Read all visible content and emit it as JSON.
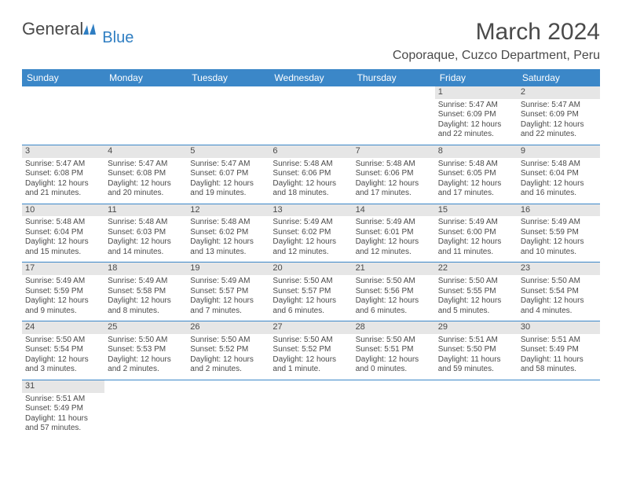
{
  "logo": {
    "text1": "General",
    "text2": "Blue"
  },
  "title": "March 2024",
  "location": "Coporaque, Cuzco Department, Peru",
  "colors": {
    "header_bg": "#3b87c8",
    "header_text": "#ffffff",
    "daynum_bg": "#e6e6e6",
    "text": "#4a4a4a",
    "row_border": "#3b87c8"
  },
  "weekdays": [
    "Sunday",
    "Monday",
    "Tuesday",
    "Wednesday",
    "Thursday",
    "Friday",
    "Saturday"
  ],
  "weeks": [
    [
      null,
      null,
      null,
      null,
      null,
      {
        "n": "1",
        "sr": "Sunrise: 5:47 AM",
        "ss": "Sunset: 6:09 PM",
        "dl1": "Daylight: 12 hours",
        "dl2": "and 22 minutes."
      },
      {
        "n": "2",
        "sr": "Sunrise: 5:47 AM",
        "ss": "Sunset: 6:09 PM",
        "dl1": "Daylight: 12 hours",
        "dl2": "and 22 minutes."
      }
    ],
    [
      {
        "n": "3",
        "sr": "Sunrise: 5:47 AM",
        "ss": "Sunset: 6:08 PM",
        "dl1": "Daylight: 12 hours",
        "dl2": "and 21 minutes."
      },
      {
        "n": "4",
        "sr": "Sunrise: 5:47 AM",
        "ss": "Sunset: 6:08 PM",
        "dl1": "Daylight: 12 hours",
        "dl2": "and 20 minutes."
      },
      {
        "n": "5",
        "sr": "Sunrise: 5:47 AM",
        "ss": "Sunset: 6:07 PM",
        "dl1": "Daylight: 12 hours",
        "dl2": "and 19 minutes."
      },
      {
        "n": "6",
        "sr": "Sunrise: 5:48 AM",
        "ss": "Sunset: 6:06 PM",
        "dl1": "Daylight: 12 hours",
        "dl2": "and 18 minutes."
      },
      {
        "n": "7",
        "sr": "Sunrise: 5:48 AM",
        "ss": "Sunset: 6:06 PM",
        "dl1": "Daylight: 12 hours",
        "dl2": "and 17 minutes."
      },
      {
        "n": "8",
        "sr": "Sunrise: 5:48 AM",
        "ss": "Sunset: 6:05 PM",
        "dl1": "Daylight: 12 hours",
        "dl2": "and 17 minutes."
      },
      {
        "n": "9",
        "sr": "Sunrise: 5:48 AM",
        "ss": "Sunset: 6:04 PM",
        "dl1": "Daylight: 12 hours",
        "dl2": "and 16 minutes."
      }
    ],
    [
      {
        "n": "10",
        "sr": "Sunrise: 5:48 AM",
        "ss": "Sunset: 6:04 PM",
        "dl1": "Daylight: 12 hours",
        "dl2": "and 15 minutes."
      },
      {
        "n": "11",
        "sr": "Sunrise: 5:48 AM",
        "ss": "Sunset: 6:03 PM",
        "dl1": "Daylight: 12 hours",
        "dl2": "and 14 minutes."
      },
      {
        "n": "12",
        "sr": "Sunrise: 5:48 AM",
        "ss": "Sunset: 6:02 PM",
        "dl1": "Daylight: 12 hours",
        "dl2": "and 13 minutes."
      },
      {
        "n": "13",
        "sr": "Sunrise: 5:49 AM",
        "ss": "Sunset: 6:02 PM",
        "dl1": "Daylight: 12 hours",
        "dl2": "and 12 minutes."
      },
      {
        "n": "14",
        "sr": "Sunrise: 5:49 AM",
        "ss": "Sunset: 6:01 PM",
        "dl1": "Daylight: 12 hours",
        "dl2": "and 12 minutes."
      },
      {
        "n": "15",
        "sr": "Sunrise: 5:49 AM",
        "ss": "Sunset: 6:00 PM",
        "dl1": "Daylight: 12 hours",
        "dl2": "and 11 minutes."
      },
      {
        "n": "16",
        "sr": "Sunrise: 5:49 AM",
        "ss": "Sunset: 5:59 PM",
        "dl1": "Daylight: 12 hours",
        "dl2": "and 10 minutes."
      }
    ],
    [
      {
        "n": "17",
        "sr": "Sunrise: 5:49 AM",
        "ss": "Sunset: 5:59 PM",
        "dl1": "Daylight: 12 hours",
        "dl2": "and 9 minutes."
      },
      {
        "n": "18",
        "sr": "Sunrise: 5:49 AM",
        "ss": "Sunset: 5:58 PM",
        "dl1": "Daylight: 12 hours",
        "dl2": "and 8 minutes."
      },
      {
        "n": "19",
        "sr": "Sunrise: 5:49 AM",
        "ss": "Sunset: 5:57 PM",
        "dl1": "Daylight: 12 hours",
        "dl2": "and 7 minutes."
      },
      {
        "n": "20",
        "sr": "Sunrise: 5:50 AM",
        "ss": "Sunset: 5:57 PM",
        "dl1": "Daylight: 12 hours",
        "dl2": "and 6 minutes."
      },
      {
        "n": "21",
        "sr": "Sunrise: 5:50 AM",
        "ss": "Sunset: 5:56 PM",
        "dl1": "Daylight: 12 hours",
        "dl2": "and 6 minutes."
      },
      {
        "n": "22",
        "sr": "Sunrise: 5:50 AM",
        "ss": "Sunset: 5:55 PM",
        "dl1": "Daylight: 12 hours",
        "dl2": "and 5 minutes."
      },
      {
        "n": "23",
        "sr": "Sunrise: 5:50 AM",
        "ss": "Sunset: 5:54 PM",
        "dl1": "Daylight: 12 hours",
        "dl2": "and 4 minutes."
      }
    ],
    [
      {
        "n": "24",
        "sr": "Sunrise: 5:50 AM",
        "ss": "Sunset: 5:54 PM",
        "dl1": "Daylight: 12 hours",
        "dl2": "and 3 minutes."
      },
      {
        "n": "25",
        "sr": "Sunrise: 5:50 AM",
        "ss": "Sunset: 5:53 PM",
        "dl1": "Daylight: 12 hours",
        "dl2": "and 2 minutes."
      },
      {
        "n": "26",
        "sr": "Sunrise: 5:50 AM",
        "ss": "Sunset: 5:52 PM",
        "dl1": "Daylight: 12 hours",
        "dl2": "and 2 minutes."
      },
      {
        "n": "27",
        "sr": "Sunrise: 5:50 AM",
        "ss": "Sunset: 5:52 PM",
        "dl1": "Daylight: 12 hours",
        "dl2": "and 1 minute."
      },
      {
        "n": "28",
        "sr": "Sunrise: 5:50 AM",
        "ss": "Sunset: 5:51 PM",
        "dl1": "Daylight: 12 hours",
        "dl2": "and 0 minutes."
      },
      {
        "n": "29",
        "sr": "Sunrise: 5:51 AM",
        "ss": "Sunset: 5:50 PM",
        "dl1": "Daylight: 11 hours",
        "dl2": "and 59 minutes."
      },
      {
        "n": "30",
        "sr": "Sunrise: 5:51 AM",
        "ss": "Sunset: 5:49 PM",
        "dl1": "Daylight: 11 hours",
        "dl2": "and 58 minutes."
      }
    ],
    [
      {
        "n": "31",
        "sr": "Sunrise: 5:51 AM",
        "ss": "Sunset: 5:49 PM",
        "dl1": "Daylight: 11 hours",
        "dl2": "and 57 minutes."
      },
      null,
      null,
      null,
      null,
      null,
      null
    ]
  ]
}
